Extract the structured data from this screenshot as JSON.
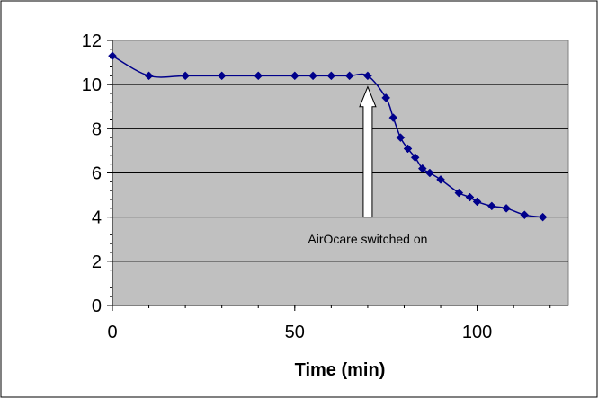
{
  "chart_data": {
    "type": "line",
    "title": "",
    "xlabel": "Time (min)",
    "ylabel": "",
    "xlim": [
      0,
      125
    ],
    "ylim": [
      0,
      12
    ],
    "x_ticks": [
      "0",
      "50",
      "100"
    ],
    "y_ticks": [
      "0",
      "2",
      "4",
      "6",
      "8",
      "10",
      "12"
    ],
    "grid": "horizontal",
    "legend": "none",
    "series": [
      {
        "x": [
          0,
          10,
          20,
          30,
          40,
          50,
          55,
          60,
          65,
          70,
          75,
          77,
          79,
          81,
          83,
          85,
          87,
          90,
          95,
          98,
          100,
          104,
          108,
          113,
          118
        ],
        "y": [
          11.3,
          10.4,
          10.4,
          10.4,
          10.4,
          10.4,
          10.4,
          10.4,
          10.4,
          10.4,
          9.4,
          8.5,
          7.6,
          7.1,
          6.7,
          6.2,
          6.0,
          5.7,
          5.1,
          4.9,
          4.7,
          4.5,
          4.4,
          4.1,
          4.0
        ],
        "color": "#00008B"
      }
    ],
    "annotations": [
      {
        "text": "AirOcare switched on",
        "arrow_at_x": 70
      }
    ],
    "plot_background": "#C0C0C0"
  }
}
